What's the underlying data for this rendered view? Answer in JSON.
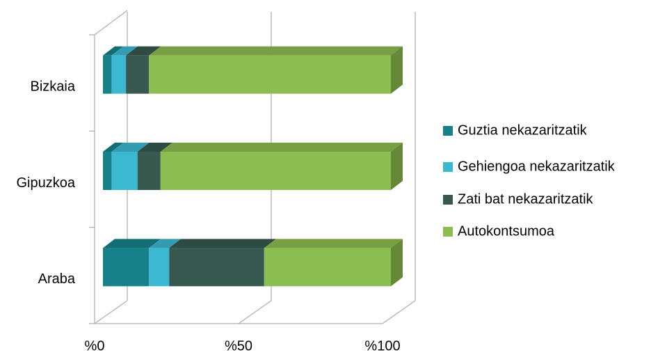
{
  "chart_data": {
    "type": "bar3d-stacked-horizontal",
    "categories": [
      "Bizkaia",
      "Gipuzkoa",
      "Araba"
    ],
    "series": [
      {
        "name": "Guztia nekazaritzatik",
        "color": "#17818a",
        "values": [
          3,
          3,
          16
        ]
      },
      {
        "name": "Gehiengoa nekazaritzatik",
        "color": "#3cb8d0",
        "values": [
          5,
          9,
          7
        ]
      },
      {
        "name": "Zati bat nekazaritzatik",
        "color": "#37594f",
        "values": [
          8,
          8,
          33
        ]
      },
      {
        "name": "Autokontsumoa",
        "color": "#8cbd50",
        "values": [
          84,
          80,
          44
        ]
      }
    ],
    "xlim": [
      0,
      100
    ],
    "xticks": [
      {
        "value": 0,
        "label": "%0"
      },
      {
        "value": 50,
        "label": "%50"
      },
      {
        "value": 100,
        "label": "%100"
      }
    ],
    "grid": true,
    "legend": "right"
  }
}
